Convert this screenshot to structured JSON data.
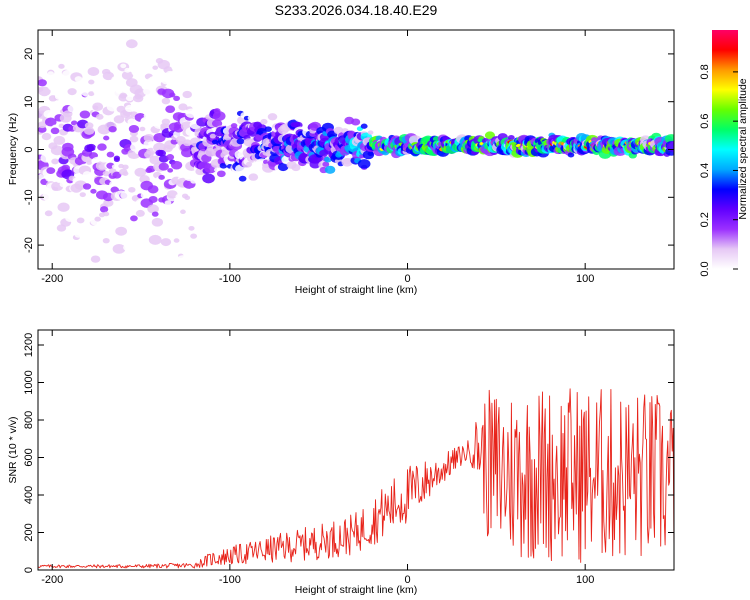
{
  "figure_title": "S233.2026.034.18.40.E29",
  "chart_data": [
    {
      "type": "heatmap",
      "name": "spectrogram",
      "xlabel": "Height of straight line (km)",
      "ylabel": "Frequency (Hz)",
      "xlim": [
        -208,
        150
      ],
      "ylim": [
        -25,
        25
      ],
      "xticks": [
        -200,
        -100,
        0,
        100
      ],
      "yticks": [
        -20,
        -10,
        0,
        10,
        20
      ],
      "colorbar": {
        "label": "Normalized spectral amplitude",
        "ticks": [
          0.0,
          0.2,
          0.4,
          0.6,
          0.8
        ],
        "range": [
          0,
          0.97
        ],
        "colors": [
          "#ffffff",
          "#e6c8f5",
          "#9b30ff",
          "#6000ff",
          "#0000ff",
          "#00aaff",
          "#00ffff",
          "#00ff66",
          "#66ff00",
          "#ffff00",
          "#ff9900",
          "#ff0000",
          "#ff0066"
        ]
      },
      "description_regions": [
        {
          "x_range": [
            -208,
            -120
          ],
          "freq_spread": 25,
          "amplitude": "low, scattered"
        },
        {
          "x_range": [
            -120,
            -20
          ],
          "freq_spread": 9,
          "amplitude": "low to medium"
        },
        {
          "x_range": [
            -20,
            150
          ],
          "freq_center": 1,
          "freq_spread": 2,
          "amplitude": "high, narrow band"
        }
      ]
    },
    {
      "type": "line",
      "name": "snr",
      "xlabel": "Height of straight line (km)",
      "ylabel": "SNR (10 * v/v)",
      "xlim": [
        -208,
        150
      ],
      "ylim": [
        0,
        1280
      ],
      "xticks": [
        -200,
        -100,
        0,
        100
      ],
      "yticks": [
        0,
        200,
        400,
        600,
        800,
        1000,
        1200
      ],
      "color": "#e8231a",
      "trend": {
        "x": [
          -208,
          -150,
          -120,
          -110,
          -90,
          -70,
          -50,
          -30,
          -20,
          -10,
          0,
          10,
          20,
          30,
          35,
          40,
          45,
          50,
          70,
          100,
          130,
          150
        ],
        "baseline": [
          20,
          20,
          25,
          60,
          90,
          120,
          150,
          190,
          260,
          330,
          400,
          470,
          540,
          610,
          640,
          660,
          560,
          520,
          520,
          510,
          500,
          480
        ],
        "amplitude": [
          8,
          10,
          15,
          40,
          60,
          80,
          95,
          110,
          130,
          150,
          160,
          120,
          80,
          60,
          60,
          200,
          400,
          460,
          480,
          480,
          470,
          460
        ]
      }
    }
  ]
}
